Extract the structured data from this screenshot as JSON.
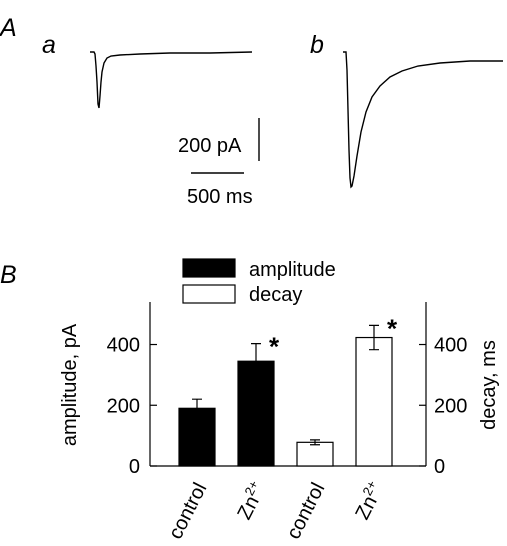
{
  "panel_a": {
    "label": "A",
    "trace_a": {
      "label": "a"
    },
    "trace_b": {
      "label": "b"
    },
    "scalebar": {
      "current": "200 pA",
      "time": "500 ms"
    }
  },
  "chart_data": {
    "type": "bar",
    "panel_label": "B",
    "title": "",
    "categories": [
      "control",
      "Zn2+",
      "control",
      "Zn2+"
    ],
    "category_display": [
      {
        "base": "control",
        "sup": ""
      },
      {
        "base": "Zn",
        "sup": "2+"
      },
      {
        "base": "control",
        "sup": ""
      },
      {
        "base": "Zn",
        "sup": "2+"
      }
    ],
    "series": [
      {
        "name": "amplitude",
        "axis": "left",
        "fill": "#000000",
        "values": [
          190,
          345,
          null,
          null
        ],
        "errors": [
          30,
          58,
          null,
          null
        ],
        "significant": [
          false,
          true,
          false,
          false
        ]
      },
      {
        "name": "decay",
        "axis": "right",
        "fill": "#ffffff",
        "values": [
          null,
          null,
          78,
          423
        ],
        "errors": [
          null,
          null,
          8,
          40
        ],
        "significant": [
          false,
          false,
          false,
          true
        ]
      }
    ],
    "significance_marker": "*",
    "ylabel_left": "amplitude, pA",
    "ylabel_right": "decay, ms",
    "ylim_left": [
      0,
      540
    ],
    "ylim_right": [
      0,
      540
    ],
    "yticks_left": [
      0,
      200,
      400
    ],
    "yticks_right": [
      0,
      200,
      400
    ],
    "legend": "top"
  }
}
